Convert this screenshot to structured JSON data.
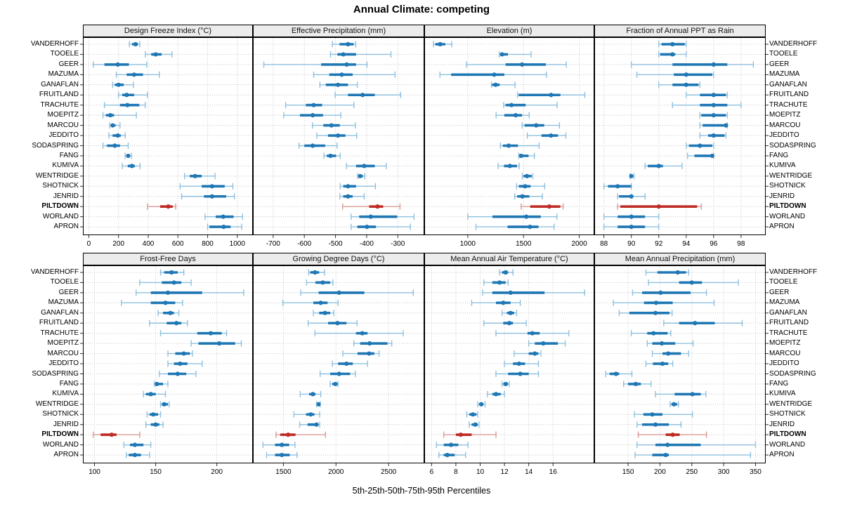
{
  "title": "Annual Climate: competing",
  "footer": "5th-25th-50th-75th-95th Percentiles",
  "percentile_labels": [
    "5th",
    "25th",
    "50th",
    "75th",
    "95th"
  ],
  "stations": [
    "VANDERHOFF",
    "TOOELE",
    "GEER",
    "MAZUMA",
    "GANAFLAN",
    "FRUITLAND",
    "TRACHUTE",
    "MOEPITZ",
    "MARCOU",
    "JEDDITO",
    "SODASPRING",
    "FANG",
    "KUMIVA",
    "WENTRIDGE",
    "SHOTNICK",
    "JENRID",
    "PILTDOWN",
    "WORLAND",
    "APRON"
  ],
  "highlight_station": "PILTDOWN",
  "colors": {
    "blue": "#1f77b4",
    "blue_light": "#8fc0de",
    "red": "#bf2b25",
    "red_light": "#dd9a94",
    "grid": "#c8c8c8",
    "strip_bg": "#ececec",
    "border": "#000000"
  },
  "chart_data": [
    {
      "type": "interval",
      "title": "Design Freeze Index (°C)",
      "xticks": [
        0,
        200,
        400,
        600,
        800,
        1000
      ],
      "xlim": [
        -40,
        1105
      ],
      "values": {
        "VANDERHOFF": [
          273,
          291,
          315,
          331,
          343
        ],
        "TOOELE": [
          380,
          420,
          450,
          490,
          560
        ],
        "GEER": [
          30,
          105,
          195,
          270,
          390
        ],
        "MAZUMA": [
          185,
          255,
          305,
          365,
          475
        ],
        "GANAFLAN": [
          160,
          175,
          200,
          235,
          300
        ],
        "FRUITLAND": [
          200,
          225,
          255,
          305,
          395
        ],
        "TRACHUTE": [
          105,
          210,
          260,
          340,
          380
        ],
        "MOEPITZ": [
          95,
          115,
          145,
          170,
          320
        ],
        "MARCOU": [
          140,
          147,
          160,
          180,
          210
        ],
        "JEDDITO": [
          135,
          160,
          195,
          215,
          245
        ],
        "SODASPRING": [
          95,
          122,
          175,
          210,
          265
        ],
        "FANG": [
          245,
          255,
          265,
          275,
          287
        ],
        "KUMIVA": [
          225,
          262,
          290,
          310,
          345
        ],
        "WENTRIDGE": [
          645,
          680,
          716,
          760,
          850
        ],
        "SHOTNICK": [
          615,
          760,
          830,
          915,
          970
        ],
        "JENRID": [
          625,
          775,
          830,
          925,
          980
        ],
        "PILTDOWN": [
          395,
          480,
          535,
          565,
          585
        ],
        "WORLAND": [
          783,
          855,
          905,
          975,
          1035
        ],
        "APRON": [
          800,
          812,
          908,
          955,
          1030
        ]
      }
    },
    {
      "type": "interval",
      "title": "Effective Precipitation (mm)",
      "xticks": [
        -700,
        -600,
        -500,
        -400,
        -300
      ],
      "xlim": [
        -765,
        -215
      ],
      "values": {
        "VANDERHOFF": [
          -510,
          -487,
          -460,
          -442,
          -435
        ],
        "TOOELE": [
          -516,
          -494,
          -475,
          -434,
          -322
        ],
        "GEER": [
          -730,
          -546,
          -464,
          -434,
          -399
        ],
        "MAZUMA": [
          -570,
          -520,
          -480,
          -445,
          -309
        ],
        "GANAFLAN": [
          -550,
          -531,
          -492,
          -460,
          -430
        ],
        "FRUITLAND": [
          -501,
          -460,
          -413,
          -374,
          -291
        ],
        "TRACHUTE": [
          -660,
          -595,
          -570,
          -543,
          -441
        ],
        "MOEPITZ": [
          -666,
          -614,
          -573,
          -540,
          -483
        ],
        "MARCOU": [
          -574,
          -539,
          -513,
          -486,
          -436
        ],
        "JEDDITO": [
          -560,
          -524,
          -492,
          -468,
          -432
        ],
        "SODASPRING": [
          -617,
          -600,
          -573,
          -533,
          -495
        ],
        "FANG": [
          -537,
          -528,
          -516,
          -498,
          -485
        ],
        "KUMIVA": [
          -465,
          -434,
          -408,
          -374,
          -337
        ],
        "WENTRIDGE": [
          -429,
          -426,
          -421,
          -412,
          -406
        ],
        "SHOTNICK": [
          -485,
          -475,
          -460,
          -434,
          -372
        ],
        "JENRID": [
          -486,
          -475,
          -460,
          -445,
          -408
        ],
        "PILTDOWN": [
          -477,
          -392,
          -365,
          -347,
          -293
        ],
        "WORLAND": [
          -450,
          -424,
          -387,
          -302,
          -248
        ],
        "APRON": [
          -450,
          -430,
          -399,
          -370,
          -260
        ]
      }
    },
    {
      "type": "interval",
      "title": "Elevation (m)",
      "xticks": [
        1000,
        1500,
        2000
      ],
      "xlim": [
        610,
        2135
      ],
      "values": {
        "VANDERHOFF": [
          692,
          709,
          752,
          798,
          856
        ],
        "TOOELE": [
          1282,
          1290,
          1307,
          1360,
          1568
        ],
        "GEER": [
          989,
          1339,
          1487,
          1700,
          1884
        ],
        "MAZUMA": [
          750,
          851,
          1237,
          1328,
          1706
        ],
        "GANAFLAN": [
          1212,
          1218,
          1250,
          1286,
          1424
        ],
        "FRUITLAND": [
          1446,
          1456,
          1747,
          1831,
          2050
        ],
        "TRACHUTE": [
          1322,
          1339,
          1392,
          1519,
          1801
        ],
        "MOEPITZ": [
          1254,
          1328,
          1430,
          1487,
          1551
        ],
        "MARCOU": [
          1487,
          1509,
          1614,
          1685,
          1822
        ],
        "JEDDITO": [
          1534,
          1661,
          1746,
          1809,
          1880
        ],
        "SODASPRING": [
          1293,
          1315,
          1367,
          1450,
          1640
        ],
        "FANG": [
          1457,
          1461,
          1478,
          1545,
          1597
        ],
        "KUMIVA": [
          1272,
          1325,
          1378,
          1441,
          1461
        ],
        "WENTRIDGE": [
          1489,
          1500,
          1531,
          1573,
          1583
        ],
        "SHOTNICK": [
          1437,
          1458,
          1514,
          1563,
          1689
        ],
        "JENRID": [
          1421,
          1443,
          1489,
          1552,
          1668
        ],
        "PILTDOWN": [
          1479,
          1560,
          1731,
          1830,
          1855
        ],
        "WORLAND": [
          1000,
          1221,
          1525,
          1655,
          1799
        ],
        "APRON": [
          1073,
          1357,
          1558,
          1634,
          1774
        ]
      }
    },
    {
      "type": "interval",
      "title": "Fraction of Annual PPT as Rain",
      "xticks": [
        88,
        90,
        92,
        94,
        96,
        98
      ],
      "xlim": [
        87.3,
        99.8
      ],
      "values": {
        "VANDERHOFF": [
          92,
          92.2,
          93,
          93.9,
          94
        ],
        "TOOELE": [
          92,
          92.1,
          93,
          93.2,
          94
        ],
        "GEER": [
          90,
          93,
          96,
          97,
          98.9
        ],
        "MAZUMA": [
          90.4,
          93.1,
          94,
          95.9,
          96
        ],
        "GANAFLAN": [
          92,
          93,
          94,
          94.9,
          95
        ],
        "FRUITLAND": [
          94,
          95,
          96,
          96.9,
          97
        ],
        "TRACHUTE": [
          93,
          95,
          96,
          97,
          98
        ],
        "MOEPITZ": [
          95,
          95.1,
          96,
          96.9,
          97
        ],
        "MARCOU": [
          95,
          95.2,
          96.9,
          97,
          97
        ],
        "JEDDITO": [
          95,
          95.6,
          96,
          96.8,
          96.9
        ],
        "SODASPRING": [
          94,
          94.2,
          95,
          95.9,
          96
        ],
        "FANG": [
          94.1,
          94.6,
          95.9,
          96,
          96
        ],
        "KUMIVA": [
          91,
          91.2,
          92,
          92.3,
          93.7
        ],
        "WENTRIDGE": [
          89.9,
          90,
          90,
          90.1,
          90.2
        ],
        "SHOTNICK": [
          88,
          88.3,
          89,
          90,
          90
        ],
        "JENRID": [
          89,
          89.1,
          90,
          90.1,
          91
        ],
        "PILTDOWN": [
          89,
          89.2,
          92,
          94.8,
          95.1
        ],
        "WORLAND": [
          88,
          89,
          90,
          91,
          92
        ],
        "APRON": [
          88,
          89,
          90,
          91,
          92
        ]
      }
    },
    {
      "type": "interval",
      "title": "Frost-Free Days",
      "xticks": [
        100,
        150,
        200
      ],
      "xlim": [
        90.5,
        229.5
      ],
      "values": {
        "VANDERHOFF": [
          154,
          157,
          163,
          168,
          173
        ],
        "TOOELE": [
          137,
          155,
          165,
          171,
          179
        ],
        "GEER": [
          134,
          146,
          160,
          188,
          222
        ],
        "MAZUMA": [
          122,
          146,
          158,
          166,
          172
        ],
        "GANAFLAN": [
          152,
          156,
          162,
          165,
          169
        ],
        "FRUITLAND": [
          145,
          159,
          167,
          171,
          176
        ],
        "TRACHUTE": [
          154,
          184,
          195,
          204,
          208
        ],
        "MOEPITZ": [
          179,
          185,
          202,
          215,
          220
        ],
        "MARCOU": [
          160,
          166,
          173,
          178,
          180
        ],
        "JEDDITO": [
          160,
          165,
          170,
          176,
          188
        ],
        "SODASPRING": [
          153,
          160,
          168,
          175,
          183
        ],
        "FANG": [
          149,
          150,
          151,
          156,
          160
        ],
        "KUMIVA": [
          140,
          142,
          146,
          150,
          158
        ],
        "WENTRIDGE": [
          154,
          155,
          157,
          160,
          161
        ],
        "SHOTNICK": [
          143,
          145,
          148,
          152,
          154
        ],
        "JENRID": [
          142,
          146,
          150,
          153,
          156
        ],
        "PILTDOWN": [
          99,
          105,
          114,
          118,
          137
        ],
        "WORLAND": [
          124,
          129,
          133,
          140,
          146
        ],
        "APRON": [
          126,
          128,
          133,
          138,
          145
        ]
      }
    },
    {
      "type": "interval",
      "title": "Growing Degree Days (°C)",
      "xticks": [
        1500,
        2000,
        2500
      ],
      "xlim": [
        1210,
        2840
      ],
      "values": {
        "VANDERHOFF": [
          1740,
          1755,
          1800,
          1840,
          1890
        ],
        "TOOELE": [
          1720,
          1805,
          1875,
          1945,
          1970
        ],
        "GEER": [
          1665,
          1835,
          2030,
          2270,
          2735
        ],
        "MAZUMA": [
          1495,
          1785,
          1855,
          1920,
          2020
        ],
        "GANAFLAN": [
          1785,
          1840,
          1895,
          1945,
          1980
        ],
        "FRUITLAND": [
          1735,
          1925,
          2015,
          2100,
          2200
        ],
        "TRACHUTE": [
          1800,
          2190,
          2250,
          2300,
          2640
        ],
        "MOEPITZ": [
          2170,
          2230,
          2320,
          2490,
          2530
        ],
        "MARCOU": [
          2065,
          2205,
          2315,
          2365,
          2410
        ],
        "JEDDITO": [
          1965,
          2020,
          2100,
          2160,
          2300
        ],
        "SODASPRING": [
          1850,
          1945,
          2030,
          2135,
          2185
        ],
        "FANG": [
          1945,
          1965,
          1995,
          2015,
          2020
        ],
        "KUMIVA": [
          1660,
          1745,
          1780,
          1805,
          1855
        ],
        "WENTRIDGE": [
          1815,
          1825,
          1835,
          1845,
          1850
        ],
        "SHOTNICK": [
          1600,
          1715,
          1760,
          1795,
          1845
        ],
        "JENRID": [
          1655,
          1730,
          1815,
          1830,
          1845
        ],
        "PILTDOWN": [
          1430,
          1470,
          1545,
          1615,
          1900
        ],
        "WORLAND": [
          1305,
          1420,
          1485,
          1555,
          1610
        ],
        "APRON": [
          1340,
          1420,
          1485,
          1560,
          1630
        ]
      }
    },
    {
      "type": "interval",
      "title": "Mean Annual Air Temperature (°C)",
      "xticks": [
        6,
        8,
        10,
        12,
        14,
        16
      ],
      "xlim": [
        5.4,
        19.4
      ],
      "values": {
        "VANDERHOFF": [
          11.6,
          11.8,
          12.1,
          12.3,
          12.7
        ],
        "TOOELE": [
          10.3,
          11,
          11.6,
          12.1,
          12.3
        ],
        "GEER": [
          10.2,
          11,
          12.5,
          15.3,
          18.6
        ],
        "MAZUMA": [
          9.3,
          11.3,
          11.9,
          12.5,
          13.3
        ],
        "GANAFLAN": [
          11.8,
          12.2,
          12.5,
          12.8,
          13
        ],
        "FRUITLAND": [
          10.3,
          11.9,
          12.4,
          12.7,
          13.8
        ],
        "TRACHUTE": [
          11.3,
          13.9,
          14.3,
          14.9,
          17.3
        ],
        "MOEPITZ": [
          14,
          14.5,
          15.2,
          16.4,
          17
        ],
        "MARCOU": [
          12.8,
          14,
          14.5,
          14.8,
          15
        ],
        "JEDDITO": [
          12,
          12.7,
          13.2,
          13.7,
          14.8
        ],
        "SODASPRING": [
          11.3,
          12.3,
          13.3,
          14,
          14.8
        ],
        "FANG": [
          11.8,
          11.9,
          12.1,
          12.3,
          12.4
        ],
        "KUMIVA": [
          10.6,
          11,
          11.3,
          11.7,
          12
        ],
        "WENTRIDGE": [
          9.8,
          9.9,
          10.1,
          10.2,
          10.4
        ],
        "SHOTNICK": [
          8.9,
          9.1,
          9.4,
          9.7,
          9.8
        ],
        "JENRID": [
          9.1,
          9.3,
          9.6,
          9.8,
          9.9
        ],
        "PILTDOWN": [
          7,
          8,
          8.4,
          9.3,
          11.3
        ],
        "WORLAND": [
          6.4,
          7,
          7.6,
          8.2,
          9
        ],
        "APRON": [
          6.6,
          7,
          7.3,
          7.9,
          8.8
        ]
      }
    },
    {
      "type": "interval",
      "title": "Mean Annual Precipitation (mm)",
      "xticks": [
        150,
        200,
        250,
        300,
        350
      ],
      "xlim": [
        97,
        366
      ],
      "values": {
        "VANDERHOFF": [
          178,
          196,
          228,
          241,
          245
        ],
        "TOOELE": [
          182,
          230,
          250,
          266,
          323
        ],
        "GEER": [
          157,
          172,
          201,
          248,
          273
        ],
        "MAZUMA": [
          127,
          175,
          194,
          220,
          285
        ],
        "GANAFLAN": [
          136,
          152,
          193,
          215,
          219
        ],
        "FRUITLAND": [
          206,
          230,
          255,
          286,
          329
        ],
        "TRACHUTE": [
          155,
          180,
          190,
          212,
          217
        ],
        "MOEPITZ": [
          180,
          188,
          203,
          224,
          252
        ],
        "MARCOU": [
          188,
          204,
          213,
          233,
          245
        ],
        "JEDDITO": [
          178,
          189,
          204,
          213,
          220
        ],
        "SODASPRING": [
          115,
          121,
          131,
          136,
          156
        ],
        "FANG": [
          143,
          150,
          162,
          170,
          186
        ],
        "KUMIVA": [
          193,
          223,
          251,
          264,
          272
        ],
        "WENTRIDGE": [
          216,
          218,
          222,
          227,
          229
        ],
        "SHOTNICK": [
          160,
          174,
          188,
          204,
          251
        ],
        "JENRID": [
          164,
          172,
          193,
          214,
          233
        ],
        "PILTDOWN": [
          166,
          209,
          220,
          231,
          273
        ],
        "WORLAND": [
          164,
          193,
          212,
          264,
          350
        ],
        "APRON": [
          161,
          188,
          209,
          214,
          342
        ]
      }
    }
  ]
}
